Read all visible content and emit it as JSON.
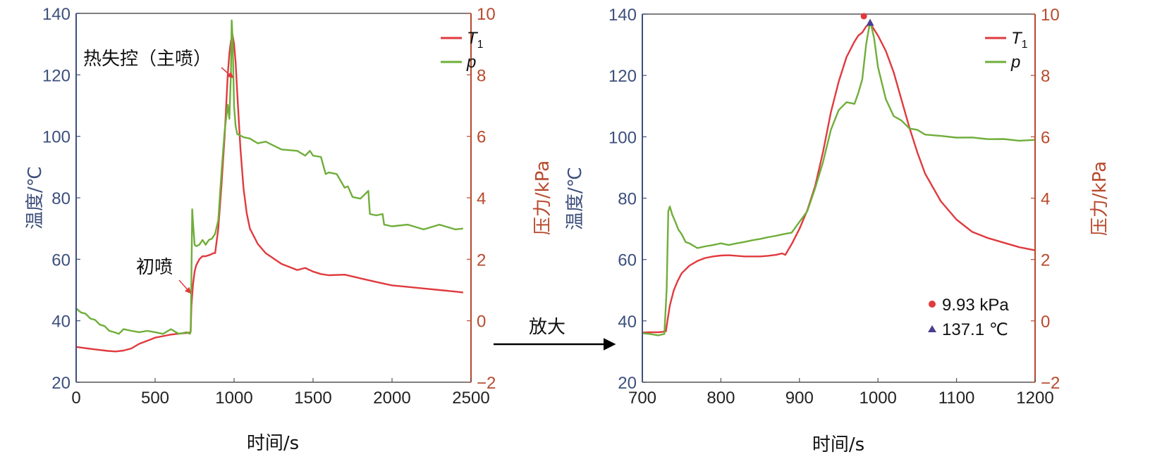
{
  "colors": {
    "T1": "#e03a3e",
    "p": "#6fae3a",
    "left_axis": "#3d4f7c",
    "right_axis": "#b84a2e",
    "frame": "#555555"
  },
  "arrow_label": "放大",
  "chart_data": [
    {
      "type": "line",
      "xlabel": "时间/s",
      "ylabel_left": "温度/℃",
      "ylabel_right": "压力/kPa",
      "xlim": [
        0,
        2500
      ],
      "ylim_left": [
        20,
        140
      ],
      "ylim_right": [
        -2,
        10
      ],
      "xticks": [
        0,
        500,
        1000,
        1500,
        2000,
        2500
      ],
      "yticks_left": [
        20,
        40,
        60,
        80,
        100,
        120,
        140
      ],
      "yticks_right": [
        "−2",
        "0",
        "2",
        "4",
        "6",
        "8",
        "10"
      ],
      "yticks_right_values": [
        -2,
        0,
        2,
        4,
        6,
        8,
        10
      ],
      "legend": {
        "position": "top-right",
        "entries": [
          {
            "label": "T",
            "sub": "1",
            "series": "T1"
          },
          {
            "label": "p",
            "series": "p"
          }
        ]
      },
      "annotations": [
        {
          "text": "热失控（主喷）",
          "x": 980,
          "y_left": 130
        },
        {
          "text": "初喷",
          "x": 725,
          "y_left": 44
        }
      ],
      "series": [
        {
          "id": "T1",
          "axis": "left",
          "x": [
            0,
            100,
            200,
            250,
            300,
            350,
            400,
            450,
            500,
            550,
            600,
            650,
            700,
            720,
            725,
            730,
            740,
            750,
            760,
            780,
            800,
            820,
            850,
            870,
            880,
            900,
            920,
            940,
            950,
            960,
            970,
            980,
            990,
            1000,
            1010,
            1020,
            1040,
            1060,
            1080,
            1100,
            1150,
            1200,
            1300,
            1400,
            1450,
            1500,
            1550,
            1600,
            1700,
            1800,
            1900,
            2000,
            2100,
            2200,
            2300,
            2400,
            2450
          ],
          "y": [
            31.5,
            30.8,
            30.2,
            30.0,
            30.3,
            31.0,
            32.5,
            33.5,
            34.5,
            35.0,
            35.5,
            35.8,
            36.0,
            36.2,
            36.5,
            45,
            52,
            56,
            58,
            60,
            61,
            61,
            61.5,
            62,
            62,
            70,
            84,
            100,
            110,
            120,
            127,
            131,
            133,
            130,
            124,
            114,
            96,
            83,
            75,
            70,
            65,
            62,
            58.5,
            56.5,
            57.2,
            56,
            55.2,
            54.8,
            55,
            53.8,
            52.6,
            51.5,
            51,
            50.5,
            50,
            49.5,
            49.2
          ]
        },
        {
          "id": "p",
          "axis": "right",
          "x": [
            0,
            30,
            60,
            90,
            120,
            150,
            180,
            210,
            240,
            270,
            300,
            350,
            400,
            450,
            500,
            550,
            600,
            650,
            700,
            720,
            725,
            730,
            735,
            740,
            745,
            750,
            760,
            780,
            800,
            820,
            840,
            860,
            880,
            900,
            920,
            940,
            960,
            970,
            980,
            985,
            990,
            1000,
            1010,
            1020,
            1040,
            1060,
            1100,
            1150,
            1200,
            1300,
            1400,
            1450,
            1480,
            1500,
            1550,
            1580,
            1600,
            1650,
            1700,
            1720,
            1750,
            1800,
            1850,
            1860,
            1900,
            1940,
            1950,
            2000,
            2100,
            2200,
            2300,
            2400,
            2450
          ],
          "y": [
            0.4,
            0.3,
            0.2,
            0.1,
            0.0,
            -0.1,
            -0.2,
            -0.3,
            -0.4,
            -0.4,
            -0.3,
            -0.3,
            -0.4,
            -0.3,
            -0.4,
            -0.4,
            -0.3,
            -0.4,
            -0.4,
            -0.4,
            -0.4,
            1.5,
            3.6,
            3.2,
            2.8,
            2.5,
            2.4,
            2.5,
            2.6,
            2.5,
            2.6,
            2.7,
            2.8,
            3.3,
            4.8,
            6.2,
            7,
            6.6,
            8,
            9.8,
            9.2,
            7.0,
            6.3,
            6.1,
            6.0,
            6.0,
            5.9,
            5.8,
            5.8,
            5.6,
            5.5,
            5.4,
            5.5,
            5.4,
            5.3,
            4.8,
            4.8,
            4.8,
            4.3,
            4.4,
            4.0,
            4.0,
            4.2,
            3.5,
            3.4,
            3.5,
            3.1,
            3.1,
            3.1,
            3.0,
            3.1,
            3.0,
            3.0
          ]
        }
      ]
    },
    {
      "type": "line",
      "xlabel": "时间/s",
      "ylabel_left": "温度/℃",
      "ylabel_right": "压力/kPa",
      "xlim": [
        700,
        1200
      ],
      "ylim_left": [
        20,
        140
      ],
      "ylim_right": [
        -2,
        10
      ],
      "xticks": [
        700,
        800,
        900,
        1000,
        1100,
        1200
      ],
      "yticks_left": [
        20,
        40,
        60,
        80,
        100,
        120,
        140
      ],
      "yticks_right": [
        "−2",
        "0",
        "2",
        "4",
        "6",
        "8",
        "10"
      ],
      "yticks_right_values": [
        -2,
        0,
        2,
        4,
        6,
        8,
        10
      ],
      "legend": {
        "position": "top-right",
        "entries": [
          {
            "label": "T",
            "sub": "1",
            "series": "T1"
          },
          {
            "label": "p",
            "series": "p"
          }
        ]
      },
      "markers": [
        {
          "shape": "circle",
          "color": "#e03a3e",
          "text": "9.93 kPa",
          "x": 982,
          "y_right": 9.93
        },
        {
          "shape": "triangle",
          "color": "#4b3d8f",
          "text": "137.1 ℃",
          "x": 990,
          "y_left": 137.1
        }
      ],
      "series": [
        {
          "id": "T1",
          "axis": "left",
          "x": [
            700,
            710,
            720,
            725,
            730,
            732,
            735,
            740,
            745,
            750,
            760,
            770,
            780,
            790,
            800,
            810,
            820,
            830,
            840,
            850,
            860,
            870,
            878,
            882,
            890,
            900,
            910,
            920,
            930,
            940,
            950,
            960,
            970,
            975,
            980,
            985,
            990,
            995,
            1000,
            1010,
            1020,
            1030,
            1040,
            1050,
            1060,
            1080,
            1100,
            1120,
            1140,
            1160,
            1180,
            1200
          ],
          "y": [
            36.2,
            36.3,
            36.3,
            36.4,
            36.6,
            40,
            45,
            50,
            53,
            55.5,
            58,
            59.5,
            60.5,
            61,
            61.3,
            61.4,
            61.2,
            61,
            61,
            61,
            61.2,
            61.5,
            62,
            61.5,
            65,
            70,
            76,
            84,
            95,
            108,
            118,
            126,
            131,
            133,
            134,
            136,
            137,
            135,
            133,
            128,
            121,
            112,
            103,
            95,
            88,
            79,
            73,
            69,
            67,
            65.5,
            64,
            63
          ]
        },
        {
          "id": "p",
          "axis": "right",
          "x": [
            700,
            710,
            720,
            728,
            731,
            733,
            735,
            738,
            742,
            746,
            750,
            755,
            760,
            770,
            780,
            790,
            800,
            810,
            820,
            830,
            840,
            850,
            860,
            870,
            880,
            890,
            900,
            910,
            920,
            930,
            940,
            950,
            960,
            970,
            975,
            980,
            985,
            990,
            995,
            1000,
            1010,
            1020,
            1030,
            1040,
            1050,
            1060,
            1080,
            1100,
            1120,
            1140,
            1160,
            1180,
            1200
          ],
          "y": [
            -0.4,
            -0.4,
            -0.5,
            -0.4,
            1.0,
            3.6,
            3.7,
            3.5,
            3.2,
            3.0,
            2.8,
            2.6,
            2.5,
            2.4,
            2.4,
            2.5,
            2.5,
            2.5,
            2.5,
            2.6,
            2.6,
            2.7,
            2.7,
            2.8,
            2.8,
            2.9,
            3.2,
            3.6,
            4.3,
            5.2,
            6.2,
            6.9,
            7.1,
            7.1,
            7.4,
            7.9,
            9.0,
            9.8,
            9.2,
            8.3,
            7.2,
            6.7,
            6.5,
            6.3,
            6.2,
            6.1,
            6.0,
            6.0,
            5.95,
            5.95,
            5.9,
            5.9,
            5.9
          ]
        }
      ]
    }
  ]
}
